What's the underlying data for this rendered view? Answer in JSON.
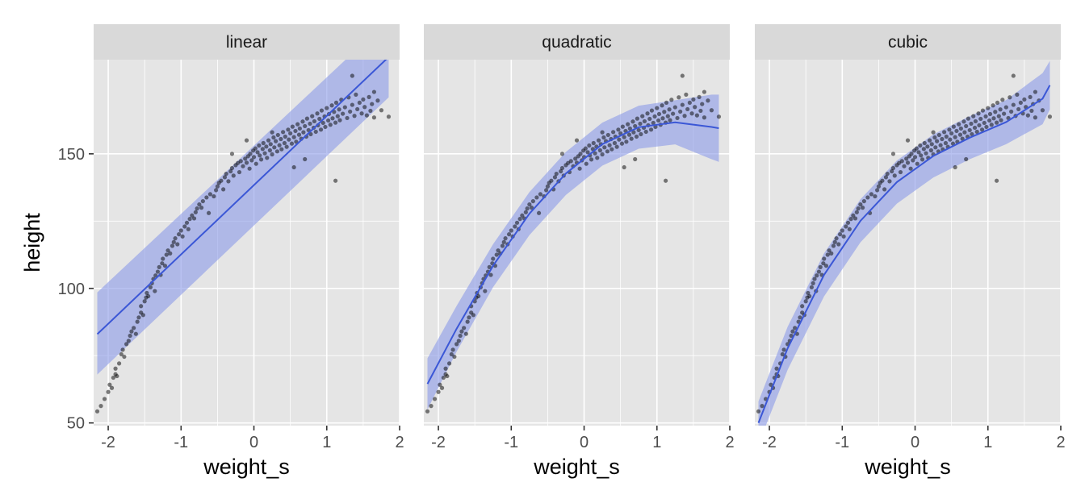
{
  "chart_data": {
    "type": "scatter",
    "facet_labels": [
      "linear",
      "quadratic",
      "cubic"
    ],
    "xlabel": "weight_s",
    "ylabel": "height",
    "xlim": [
      -2.2,
      2.0
    ],
    "ylim": [
      49,
      185
    ],
    "x_ticks": [
      -2,
      -1,
      0,
      1,
      2
    ],
    "x_tick_labels": [
      "-2",
      "-1",
      "0",
      "1",
      "2"
    ],
    "y_ticks": [
      50,
      100,
      150
    ],
    "y_tick_labels": [
      "50",
      "100",
      "150"
    ],
    "grid": true,
    "colors": {
      "panel_bg": "#e5e5e5",
      "strip_bg": "#d9d9d9",
      "points": "#000000",
      "fit_line": "#3b57d6",
      "band": "#8a9ae8"
    },
    "points": [
      [
        -2.15,
        54.3
      ],
      [
        -2.1,
        56.3
      ],
      [
        -2.05,
        58.9
      ],
      [
        -2.0,
        61.5
      ],
      [
        -1.98,
        64.2
      ],
      [
        -1.95,
        63.0
      ],
      [
        -1.93,
        66.8
      ],
      [
        -1.9,
        68.1
      ],
      [
        -1.9,
        70.2
      ],
      [
        -1.88,
        67.4
      ],
      [
        -1.85,
        72.1
      ],
      [
        -1.82,
        75.5
      ],
      [
        -1.8,
        77.2
      ],
      [
        -1.78,
        74.6
      ],
      [
        -1.75,
        79.3
      ],
      [
        -1.72,
        80.5
      ],
      [
        -1.7,
        82.4
      ],
      [
        -1.68,
        84.0
      ],
      [
        -1.65,
        85.3
      ],
      [
        -1.62,
        83.1
      ],
      [
        -1.6,
        87.6
      ],
      [
        -1.58,
        89.2
      ],
      [
        -1.55,
        91.0
      ],
      [
        -1.55,
        93.4
      ],
      [
        -1.52,
        90.1
      ],
      [
        -1.5,
        95.2
      ],
      [
        -1.48,
        96.6
      ],
      [
        -1.47,
        98.3
      ],
      [
        -1.45,
        97.1
      ],
      [
        -1.42,
        100.4
      ],
      [
        -1.4,
        101.9
      ],
      [
        -1.38,
        103.5
      ],
      [
        -1.36,
        99.0
      ],
      [
        -1.35,
        104.8
      ],
      [
        -1.32,
        106.2
      ],
      [
        -1.3,
        107.9
      ],
      [
        -1.28,
        105.0
      ],
      [
        -1.26,
        109.3
      ],
      [
        -1.25,
        111.0
      ],
      [
        -1.22,
        108.4
      ],
      [
        -1.2,
        112.5
      ],
      [
        -1.18,
        114.1
      ],
      [
        -1.15,
        113.0
      ],
      [
        -1.12,
        115.8
      ],
      [
        -1.1,
        117.2
      ],
      [
        -1.08,
        118.6
      ],
      [
        -1.05,
        116.4
      ],
      [
        -1.03,
        120.1
      ],
      [
        -1.0,
        121.5
      ],
      [
        -0.98,
        119.3
      ],
      [
        -0.95,
        123.0
      ],
      [
        -0.92,
        124.4
      ],
      [
        -0.9,
        122.0
      ],
      [
        -0.88,
        125.8
      ],
      [
        -0.85,
        127.1
      ],
      [
        -0.82,
        126.0
      ],
      [
        -0.8,
        128.3
      ],
      [
        -0.78,
        129.7
      ],
      [
        -0.75,
        131.2
      ],
      [
        -0.72,
        130.0
      ],
      [
        -0.7,
        132.4
      ],
      [
        -0.65,
        133.8
      ],
      [
        -0.62,
        128.0
      ],
      [
        -0.6,
        135.0
      ],
      [
        -0.55,
        134.2
      ],
      [
        -0.52,
        136.5
      ],
      [
        -0.5,
        137.9
      ],
      [
        -0.48,
        139.2
      ],
      [
        -0.45,
        140.0
      ],
      [
        -0.42,
        136.8
      ],
      [
        -0.4,
        141.3
      ],
      [
        -0.38,
        142.6
      ],
      [
        -0.35,
        139.8
      ],
      [
        -0.32,
        143.5
      ],
      [
        -0.3,
        144.7
      ],
      [
        -0.28,
        141.9
      ],
      [
        -0.25,
        145.8
      ],
      [
        -0.22,
        146.6
      ],
      [
        -0.2,
        143.2
      ],
      [
        -0.18,
        147.3
      ],
      [
        -0.15,
        145.4
      ],
      [
        -0.12,
        148.2
      ],
      [
        -0.1,
        146.7
      ],
      [
        -0.08,
        149.1
      ],
      [
        -0.06,
        144.5
      ],
      [
        -0.05,
        150.0
      ],
      [
        -0.03,
        147.6
      ],
      [
        -0.01,
        151.2
      ],
      [
        0.0,
        148.8
      ],
      [
        0.02,
        152.0
      ],
      [
        0.03,
        146.3
      ],
      [
        0.05,
        150.6
      ],
      [
        0.07,
        153.1
      ],
      [
        0.08,
        149.4
      ],
      [
        0.1,
        147.9
      ],
      [
        0.12,
        151.8
      ],
      [
        0.13,
        154.0
      ],
      [
        0.15,
        150.2
      ],
      [
        0.17,
        152.7
      ],
      [
        0.18,
        148.5
      ],
      [
        0.2,
        155.0
      ],
      [
        0.22,
        151.3
      ],
      [
        0.23,
        153.6
      ],
      [
        0.25,
        149.8
      ],
      [
        0.27,
        156.1
      ],
      [
        0.28,
        152.4
      ],
      [
        0.3,
        154.7
      ],
      [
        0.32,
        150.9
      ],
      [
        0.33,
        157.0
      ],
      [
        0.35,
        153.2
      ],
      [
        0.37,
        155.5
      ],
      [
        0.38,
        151.7
      ],
      [
        0.4,
        158.1
      ],
      [
        0.42,
        154.0
      ],
      [
        0.43,
        156.4
      ],
      [
        0.45,
        152.6
      ],
      [
        0.47,
        159.0
      ],
      [
        0.48,
        155.3
      ],
      [
        0.5,
        157.6
      ],
      [
        0.52,
        153.8
      ],
      [
        0.53,
        160.1
      ],
      [
        0.55,
        156.2
      ],
      [
        0.57,
        158.5
      ],
      [
        0.58,
        154.5
      ],
      [
        0.6,
        161.0
      ],
      [
        0.62,
        157.1
      ],
      [
        0.63,
        159.4
      ],
      [
        0.65,
        155.6
      ],
      [
        0.67,
        162.0
      ],
      [
        0.68,
        158.0
      ],
      [
        0.7,
        160.3
      ],
      [
        0.72,
        156.4
      ],
      [
        0.73,
        163.1
      ],
      [
        0.75,
        158.8
      ],
      [
        0.77,
        161.2
      ],
      [
        0.78,
        157.3
      ],
      [
        0.8,
        164.0
      ],
      [
        0.82,
        159.7
      ],
      [
        0.83,
        162.1
      ],
      [
        0.85,
        158.2
      ],
      [
        0.87,
        165.0
      ],
      [
        0.88,
        160.6
      ],
      [
        0.9,
        163.0
      ],
      [
        0.92,
        159.0
      ],
      [
        0.93,
        166.1
      ],
      [
        0.95,
        161.5
      ],
      [
        0.97,
        163.9
      ],
      [
        0.98,
        160.0
      ],
      [
        1.0,
        167.0
      ],
      [
        1.02,
        162.4
      ],
      [
        1.03,
        164.8
      ],
      [
        1.05,
        160.8
      ],
      [
        1.07,
        168.0
      ],
      [
        1.08,
        163.2
      ],
      [
        1.1,
        165.6
      ],
      [
        1.12,
        161.6
      ],
      [
        1.13,
        169.0
      ],
      [
        1.15,
        164.0
      ],
      [
        1.17,
        166.5
      ],
      [
        1.18,
        162.5
      ],
      [
        1.2,
        170.1
      ],
      [
        1.22,
        164.9
      ],
      [
        1.25,
        167.3
      ],
      [
        1.28,
        163.3
      ],
      [
        1.3,
        171.0
      ],
      [
        1.32,
        165.7
      ],
      [
        1.35,
        168.2
      ],
      [
        1.38,
        164.1
      ],
      [
        1.4,
        172.0
      ],
      [
        1.42,
        166.6
      ],
      [
        1.45,
        169.0
      ],
      [
        1.48,
        165.0
      ],
      [
        1.5,
        170.2
      ],
      [
        1.52,
        167.4
      ],
      [
        1.55,
        164.3
      ],
      [
        1.58,
        171.1
      ],
      [
        1.6,
        166.0
      ],
      [
        1.62,
        168.5
      ],
      [
        1.65,
        163.5
      ],
      [
        1.7,
        169.8
      ],
      [
        1.75,
        166.2
      ],
      [
        1.85,
        163.8
      ],
      [
        1.35,
        179.0
      ],
      [
        1.65,
        173.0
      ],
      [
        1.12,
        140.0
      ],
      [
        0.55,
        145.0
      ],
      [
        -0.3,
        150.0
      ],
      [
        0.7,
        148.0
      ],
      [
        0.25,
        158.0
      ],
      [
        -0.1,
        155.0
      ]
    ],
    "series": [
      {
        "facet": "linear",
        "fit_x": [
          -2.15,
          1.85
        ],
        "fit_mean": [
          83.0,
          186.0
        ],
        "band_upper": [
          98.5,
          200.0
        ],
        "band_lower": [
          68.0,
          171.0
        ]
      },
      {
        "facet": "quadratic",
        "fit_x": [
          -2.15,
          -1.75,
          -1.25,
          -0.75,
          -0.25,
          0.25,
          0.75,
          1.25,
          1.75,
          1.85
        ],
        "fit_mean": [
          64.5,
          85.0,
          108.4,
          127.8,
          142.7,
          153.6,
          159.9,
          161.7,
          160.0,
          159.5
        ],
        "band_upper": [
          74.0,
          93.5,
          116.4,
          135.8,
          150.7,
          161.6,
          167.9,
          169.9,
          172.0,
          172.0
        ],
        "band_lower": [
          55.0,
          76.5,
          100.4,
          119.8,
          134.7,
          145.6,
          151.9,
          153.5,
          148.0,
          147.0
        ]
      },
      {
        "facet": "cubic",
        "fit_x": [
          -2.15,
          -1.75,
          -1.25,
          -0.75,
          -0.25,
          0.25,
          0.75,
          1.25,
          1.75,
          1.85
        ],
        "fit_mean": [
          50.0,
          77.7,
          105.0,
          125.1,
          139.5,
          149.2,
          156.0,
          161.8,
          170.5,
          175.5
        ],
        "band_upper": [
          58.0,
          85.7,
          113.0,
          133.1,
          147.5,
          157.2,
          164.0,
          170.0,
          180.0,
          184.5
        ],
        "band_lower": [
          42.0,
          69.7,
          97.0,
          117.1,
          131.5,
          141.2,
          148.0,
          153.6,
          161.0,
          166.5
        ]
      }
    ]
  }
}
